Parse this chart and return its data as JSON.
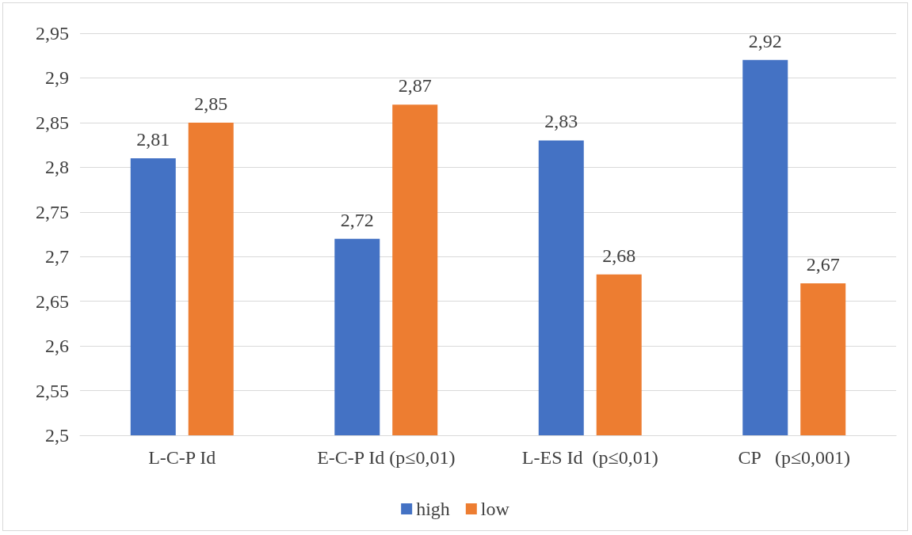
{
  "chart_data": {
    "type": "bar",
    "categories": [
      "L-C-P Id",
      "E-C-P Id (p≤0,01)",
      "L-ES Id  (p≤0,01)",
      "CP   (p≤0,001)"
    ],
    "series": [
      {
        "name": "high",
        "color": "#4472c4",
        "values": [
          2.81,
          2.72,
          2.83,
          2.92
        ],
        "value_labels": [
          "2,81",
          "2,72",
          "2,83",
          "2,92"
        ]
      },
      {
        "name": "low",
        "color": "#ed7d31",
        "values": [
          2.85,
          2.87,
          2.68,
          2.67
        ],
        "value_labels": [
          "2,85",
          "2,87",
          "2,68",
          "2,67"
        ]
      }
    ],
    "ylim": [
      2.5,
      2.95
    ],
    "yticks": [
      {
        "value": 2.5,
        "label": "2,5"
      },
      {
        "value": 2.55,
        "label": "2,55"
      },
      {
        "value": 2.6,
        "label": "2,6"
      },
      {
        "value": 2.65,
        "label": "2,65"
      },
      {
        "value": 2.7,
        "label": "2,7"
      },
      {
        "value": 2.75,
        "label": "2,75"
      },
      {
        "value": 2.8,
        "label": "2,8"
      },
      {
        "value": 2.85,
        "label": "2,85"
      },
      {
        "value": 2.9,
        "label": "2,9"
      },
      {
        "value": 2.95,
        "label": "2,95"
      }
    ],
    "grid": "y",
    "legend": "bottom"
  }
}
